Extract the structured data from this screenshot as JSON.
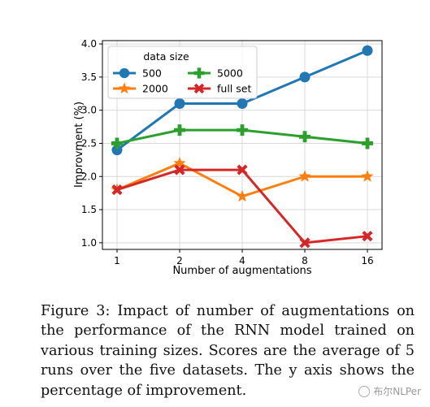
{
  "chart_data": {
    "type": "line",
    "x": [
      "1",
      "2",
      "4",
      "8",
      "16"
    ],
    "xlabel": "Number of augmentations",
    "ylabel": "Improvment (%)",
    "ylim": [
      0.9,
      4.05
    ],
    "yticks": [
      "1.0",
      "1.5",
      "2.0",
      "2.5",
      "3.0",
      "3.5",
      "4.0"
    ],
    "grid": true,
    "legend": {
      "title": "data size",
      "placement": "top-left",
      "ncol": 2
    },
    "series": [
      {
        "name": "500",
        "color": "#1f77b4",
        "marker": "circle",
        "values": [
          2.4,
          3.1,
          3.1,
          3.5,
          3.9
        ]
      },
      {
        "name": "2000",
        "color": "#ff7f0e",
        "marker": "star",
        "values": [
          1.8,
          2.2,
          1.7,
          2.0,
          2.0
        ]
      },
      {
        "name": "5000",
        "color": "#2ca02c",
        "marker": "plus",
        "values": [
          2.5,
          2.7,
          2.7,
          2.6,
          2.5
        ]
      },
      {
        "name": "full set",
        "color": "#d62728",
        "marker": "x",
        "values": [
          1.8,
          2.1,
          2.1,
          1.0,
          1.1
        ]
      }
    ]
  },
  "caption": "Figure 3: Impact of number of augmentations on the performance of the RNN model trained on various training sizes. Scores are the average of 5 runs over the five datasets. The y axis shows the percentage of improvement.",
  "watermark": "布尔NLPer"
}
